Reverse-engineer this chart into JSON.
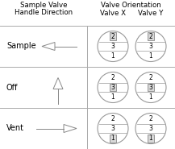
{
  "title_left_line1": "Sample Valve",
  "title_left_line2": "Handle Direction",
  "title_right": "Valve Orientation",
  "valve_x_label": "Valve X",
  "valve_y_label": "Valve Y",
  "rows": [
    {
      "label": "Sample",
      "arrow": "left"
    },
    {
      "label": "Off",
      "arrow": "up"
    },
    {
      "label": "Vent",
      "arrow": "right"
    }
  ],
  "handle_positions": [
    "top",
    "middle",
    "bottom"
  ],
  "bg_color": "#ffffff",
  "line_color": "#aaaaaa",
  "text_color": "#000000",
  "handle_fill": "#d8d8d8",
  "handle_edge": "#888888",
  "circle_edge": "#999999",
  "arrow_color": "#888888",
  "font_size_header": 6.2,
  "font_size_label": 7.0,
  "font_size_num": 5.5
}
